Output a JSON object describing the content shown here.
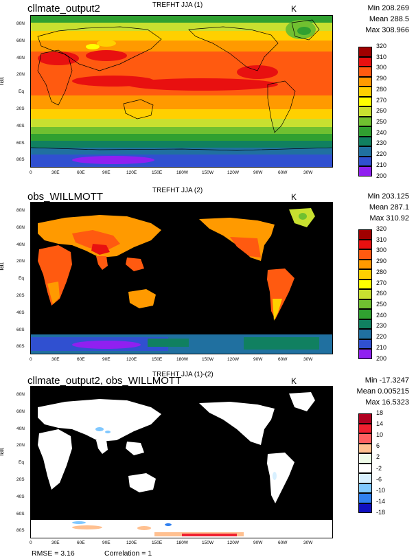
{
  "panels": [
    {
      "case": "cllmate_output2",
      "variable": "TREFHT JJA (1)",
      "units": "K",
      "min": "Min 208.269",
      "mean": "Mean 288.5",
      "max": "Max 308.966",
      "kind": "model"
    },
    {
      "case": "obs_WILLMOTT",
      "variable": "TREFHT JJA (2)",
      "units": "K",
      "min": "Min 203.125",
      "mean": "Mean 287.1",
      "max": "Max 310.92",
      "kind": "obs"
    },
    {
      "case": "cllmate_output2, obs_WILLMOTT",
      "variable": "TREFHT JJA (1)-(2)",
      "units": "K",
      "min": "Min -17.3247",
      "mean": "Mean 0.005215",
      "max": "Max 16.5323",
      "kind": "diff"
    }
  ],
  "ylabel": "lat",
  "lat_ticks": [
    "80N",
    "60N",
    "40N",
    "20N",
    "Eq",
    "20S",
    "40S",
    "60S",
    "80S"
  ],
  "lon_ticks": [
    "0",
    "30E",
    "60E",
    "90E",
    "120E",
    "150E",
    "180W",
    "150W",
    "120W",
    "90W",
    "60W",
    "30W"
  ],
  "abs_colorbar": {
    "labels": [
      "320",
      "310",
      "300",
      "290",
      "280",
      "270",
      "260",
      "250",
      "240",
      "230",
      "220",
      "210",
      "200"
    ],
    "colors": [
      "#a00000",
      "#e81010",
      "#ff5a10",
      "#ff9a00",
      "#ffd000",
      "#ffff00",
      "#c8e030",
      "#70c030",
      "#30a030",
      "#108060",
      "#2070a0",
      "#3050d0",
      "#9020f0"
    ]
  },
  "diff_colorbar": {
    "labels": [
      "18",
      "14",
      "10",
      "6",
      "2",
      "-2",
      "-6",
      "-10",
      "-14",
      "-18"
    ],
    "colors": [
      "#b00020",
      "#f02030",
      "#ff6060",
      "#ffc090",
      "#eefbe8",
      "#ffffff",
      "#d8f0ff",
      "#80c8ff",
      "#3080f0",
      "#1010c0"
    ]
  },
  "footer": {
    "rmse": "RMSE = 3.16",
    "correlation": "Correlation = 1"
  }
}
